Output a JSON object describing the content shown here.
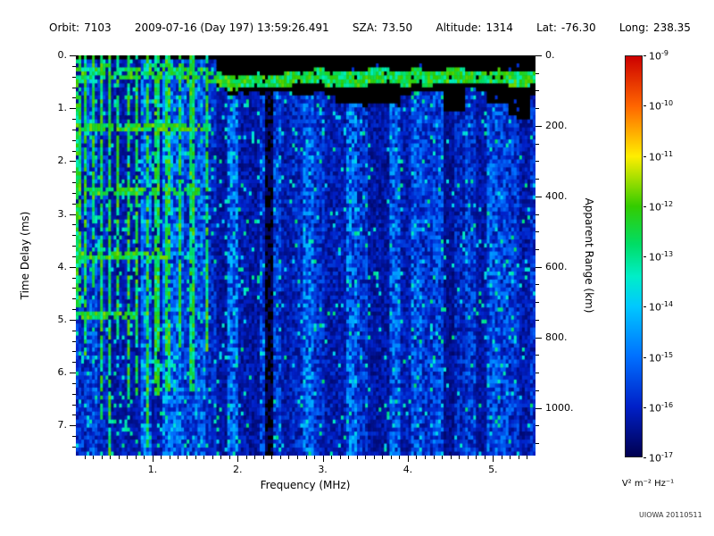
{
  "header": {
    "orbit_label": "Orbit:",
    "orbit_value": "7103",
    "datetime": "2009-07-16 (Day 197) 13:59:26.491",
    "sza_label": "SZA:",
    "sza_value": "73.50",
    "altitude_label": "Altitude:",
    "altitude_value": "1314",
    "lat_label": "Lat:",
    "lat_value": "-76.30",
    "long_label": "Long:",
    "long_value": "238.35"
  },
  "chart_data": {
    "type": "heatmap",
    "title": "",
    "xlabel": "Frequency (MHz)",
    "ylabel_left": "Time Delay (ms)",
    "ylabel_right": "Apparent Range (km)",
    "x_range_mhz": [
      0.1,
      5.5
    ],
    "x_ticks": [
      1,
      2,
      3,
      4,
      5
    ],
    "x_tick_labels": [
      "1.",
      "2.",
      "3.",
      "4.",
      "5."
    ],
    "y_range_ms": [
      0,
      7.57
    ],
    "y_ticks_ms": [
      0,
      1,
      2,
      3,
      4,
      5,
      6,
      7
    ],
    "y_tick_labels": [
      "0.",
      "1.",
      "2.",
      "3.",
      "4.",
      "5.",
      "6.",
      "7."
    ],
    "right_axis_ticks_km": [
      0,
      200,
      400,
      600,
      800,
      1000
    ],
    "right_axis_tick_labels": [
      "0.",
      "200.",
      "400.",
      "600.",
      "800.",
      "1000."
    ],
    "range_km_per_ms": 150,
    "colorbar": {
      "scale": "log",
      "min": "1e-17",
      "max": "1e-9",
      "tick_exponents": [
        -9,
        -10,
        -11,
        -12,
        -13,
        -14,
        -15,
        -16,
        -17
      ],
      "units": "V² m⁻² Hz⁻¹",
      "stops": [
        {
          "t": 0.0,
          "c": "#000050"
        },
        {
          "t": 0.125,
          "c": "#0020c8"
        },
        {
          "t": 0.25,
          "c": "#0070ff"
        },
        {
          "t": 0.375,
          "c": "#00c8ff"
        },
        {
          "t": 0.45,
          "c": "#00eec8"
        },
        {
          "t": 0.53,
          "c": "#00dd66"
        },
        {
          "t": 0.625,
          "c": "#33cc00"
        },
        {
          "t": 0.75,
          "c": "#ffee00"
        },
        {
          "t": 0.875,
          "c": "#ff6600"
        },
        {
          "t": 1.0,
          "c": "#cc0000"
        }
      ]
    },
    "features": {
      "background": "black below noise floor",
      "diffuse_noise": "blue speckle over most of plot; denser below 1.75 MHz and below the echo trace; black above the echo trace at higher frequencies",
      "surface_echo_trace_points": [
        [
          0.1,
          0.3
        ],
        [
          1.0,
          0.3
        ],
        [
          1.7,
          0.34
        ],
        [
          1.9,
          0.52
        ],
        [
          2.1,
          0.52
        ],
        [
          2.5,
          0.44
        ],
        [
          3.0,
          0.42
        ],
        [
          4.0,
          0.41
        ],
        [
          5.0,
          0.42
        ],
        [
          5.5,
          0.44
        ]
      ],
      "plasma_harmonic_lines_mhz": [
        0.13,
        0.22,
        0.31,
        0.4,
        0.5,
        0.6,
        0.71,
        0.82,
        0.93,
        1.05,
        1.18,
        1.32,
        1.47,
        1.63
      ],
      "cyclotron_echo_lines": [
        {
          "delay_ms": 1.35,
          "f_max_mhz": 1.7
        },
        {
          "delay_ms": 2.55,
          "f_max_mhz": 1.55
        },
        {
          "delay_ms": 3.75,
          "f_max_mhz": 1.2
        },
        {
          "delay_ms": 4.95,
          "f_max_mhz": 0.8
        }
      ],
      "interference_gap_mhz": {
        "center": 2.37,
        "width": 0.1
      }
    }
  },
  "credit": "UIOWA 20110511"
}
